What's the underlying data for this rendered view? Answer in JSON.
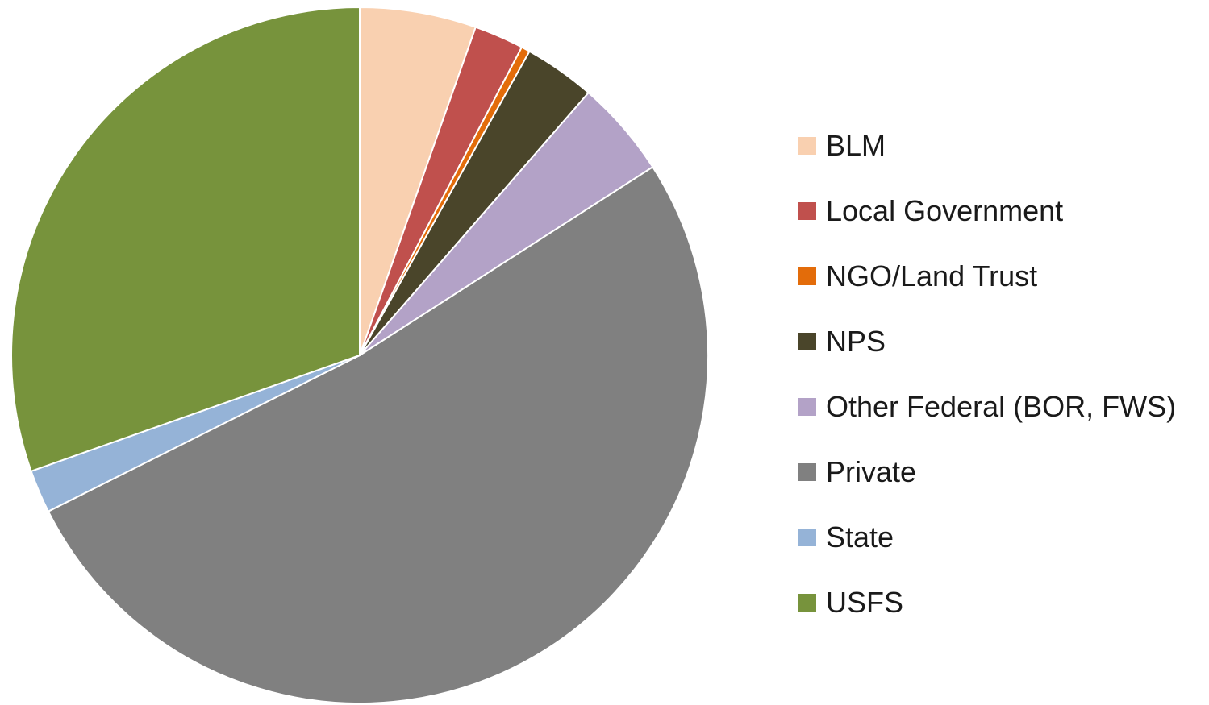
{
  "chart_data": {
    "type": "pie",
    "title": "",
    "start_angle_deg": 0,
    "direction": "clockwise",
    "legend_position": "right",
    "unit": "percent",
    "slices": [
      {
        "label": "BLM",
        "value": 5.4,
        "color": "#F9D0B0"
      },
      {
        "label": "Local Government",
        "value": 2.3,
        "color": "#C0504D"
      },
      {
        "label": "NGO/Land Trust",
        "value": 0.4,
        "color": "#E36C0A"
      },
      {
        "label": "NPS",
        "value": 3.3,
        "color": "#4A452A"
      },
      {
        "label": "Other Federal (BOR, FWS)",
        "value": 4.5,
        "color": "#B3A2C7"
      },
      {
        "label": "Private",
        "value": 51.7,
        "color": "#808080"
      },
      {
        "label": "State",
        "value": 2.0,
        "color": "#95B3D7"
      },
      {
        "label": "USFS",
        "value": 30.4,
        "color": "#77933C"
      }
    ]
  }
}
